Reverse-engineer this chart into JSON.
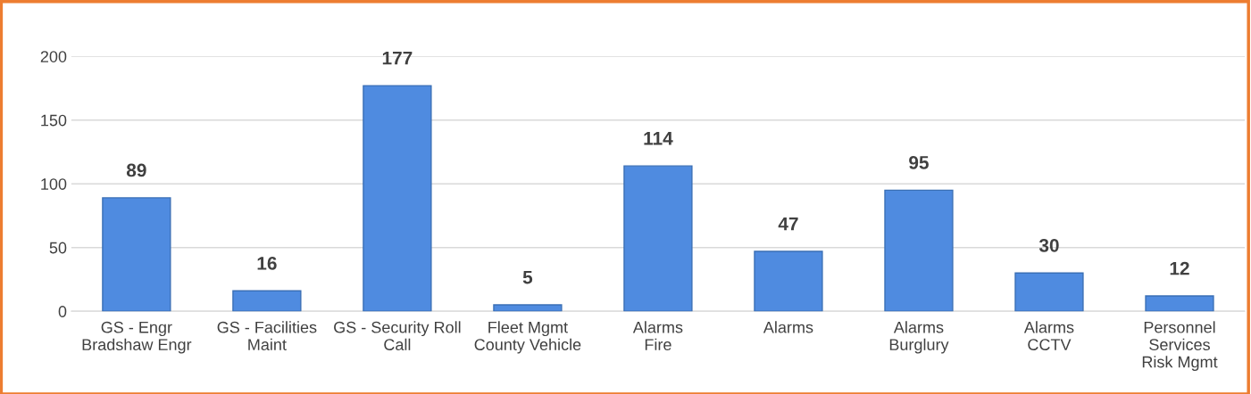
{
  "chart_data": {
    "type": "bar",
    "categories": [
      "GS - Engr\nBradshaw Engr",
      "GS - Facilities\nMaint",
      "GS - Security Roll\nCall",
      "Fleet Mgmt\nCounty Vehicle",
      "Alarms\nFire",
      "Alarms",
      "Alarms\nBurglury",
      "Alarms\nCCTV",
      "Personnel\nServices\nRisk Mgmt"
    ],
    "values": [
      89,
      16,
      177,
      5,
      114,
      47,
      95,
      30,
      12
    ],
    "color": "#4f8be0",
    "ylim": [
      0,
      200
    ],
    "yticks": [
      0,
      50,
      100,
      150,
      200
    ],
    "grid": "y",
    "data_labels": true,
    "legend": false
  }
}
